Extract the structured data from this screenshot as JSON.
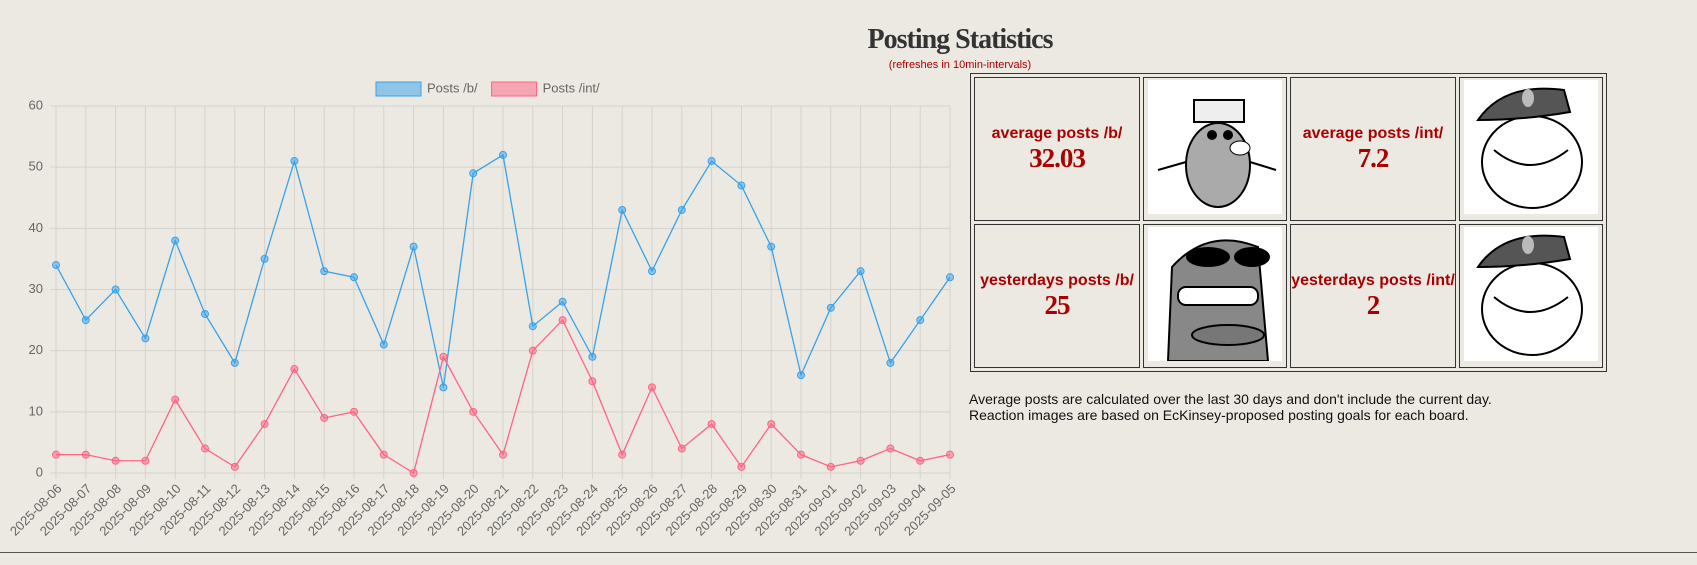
{
  "chart_data": {
    "type": "line",
    "categories": [
      "2025-08-06",
      "2025-08-07",
      "2025-08-08",
      "2025-08-09",
      "2025-08-10",
      "2025-08-11",
      "2025-08-12",
      "2025-08-13",
      "2025-08-14",
      "2025-08-15",
      "2025-08-16",
      "2025-08-17",
      "2025-08-18",
      "2025-08-19",
      "2025-08-20",
      "2025-08-21",
      "2025-08-22",
      "2025-08-23",
      "2025-08-24",
      "2025-08-25",
      "2025-08-26",
      "2025-08-27",
      "2025-08-28",
      "2025-08-29",
      "2025-08-30",
      "2025-08-31",
      "2025-09-01",
      "2025-09-02",
      "2025-09-03",
      "2025-09-04",
      "2025-09-05"
    ],
    "series": [
      {
        "name": "Posts /b/",
        "color": "#36a2eb",
        "values": [
          34,
          25,
          30,
          22,
          38,
          26,
          18,
          35,
          51,
          33,
          32,
          21,
          37,
          14,
          49,
          52,
          24,
          28,
          19,
          43,
          33,
          43,
          51,
          47,
          37,
          16,
          27,
          33,
          18,
          25,
          32
        ]
      },
      {
        "name": "Posts /int/",
        "color": "#ff6384",
        "values": [
          3,
          3,
          2,
          2,
          12,
          4,
          1,
          8,
          17,
          9,
          10,
          3,
          0,
          19,
          10,
          3,
          20,
          25,
          15,
          3,
          14,
          4,
          8,
          1,
          8,
          3,
          1,
          2,
          4,
          2,
          3
        ]
      }
    ],
    "ylim": [
      0,
      60
    ],
    "yticks": [
      0,
      10,
      20,
      30,
      40,
      50,
      60
    ],
    "grid": true,
    "legend": "top"
  },
  "header": {
    "title": "Posting Statistics",
    "subtitle": "(refreshes in 10min-intervals)"
  },
  "stats": [
    {
      "label": "average posts /b/",
      "value": 32.03
    },
    {
      "label": "average posts /int/",
      "value": 7.2
    },
    {
      "label": "yesterdays posts /b/",
      "value": 25
    },
    {
      "label": "yesterdays posts /int/",
      "value": 2
    }
  ],
  "notes": [
    "Average posts are calculated over the last 30 days and don't include the current day.",
    "Reaction images are based on EcKinsey-proposed posting goals for each board."
  ]
}
